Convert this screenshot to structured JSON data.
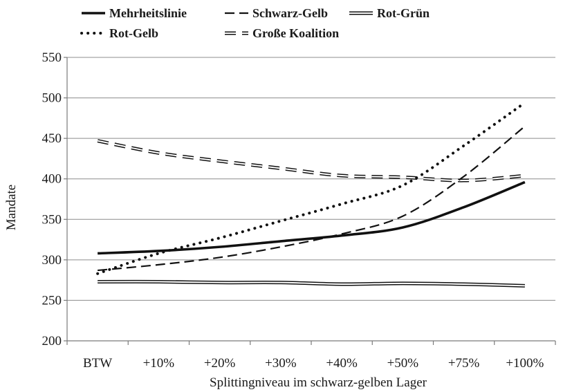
{
  "chart_data": {
    "type": "line",
    "categories": [
      "BTW",
      "+10%",
      "+20%",
      "+30%",
      "+40%",
      "+50%",
      "+75%",
      "+100%"
    ],
    "xlabel": "Splittingniveau im schwarz-gelben Lager",
    "ylabel": "Mandate",
    "ylim": [
      200,
      550
    ],
    "yticks": [
      200,
      250,
      300,
      350,
      400,
      450,
      500,
      550
    ],
    "grid": "horizontal",
    "legend_position": "top",
    "series": [
      {
        "name": "Mehrheitslinie",
        "style": "solid-thick",
        "color": "#111111",
        "values": [
          308,
          311,
          316,
          323,
          330,
          340,
          365,
          396
        ]
      },
      {
        "name": "Schwarz-Gelb",
        "style": "dashed",
        "color": "#111111",
        "values": [
          287,
          294,
          303,
          316,
          332,
          354,
          403,
          465
        ]
      },
      {
        "name": "Rot-Grün",
        "style": "double",
        "color": "#111111",
        "values": [
          273,
          273,
          272,
          272,
          270,
          271,
          270,
          268
        ]
      },
      {
        "name": "Rot-Gelb",
        "style": "dotted",
        "color": "#111111",
        "values": [
          283,
          308,
          327,
          348,
          369,
          392,
          441,
          494
        ]
      },
      {
        "name": "Große Koalition",
        "style": "double-dashed",
        "color": "#111111",
        "values": [
          447,
          432,
          422,
          413,
          404,
          402,
          398,
          404
        ]
      }
    ]
  }
}
